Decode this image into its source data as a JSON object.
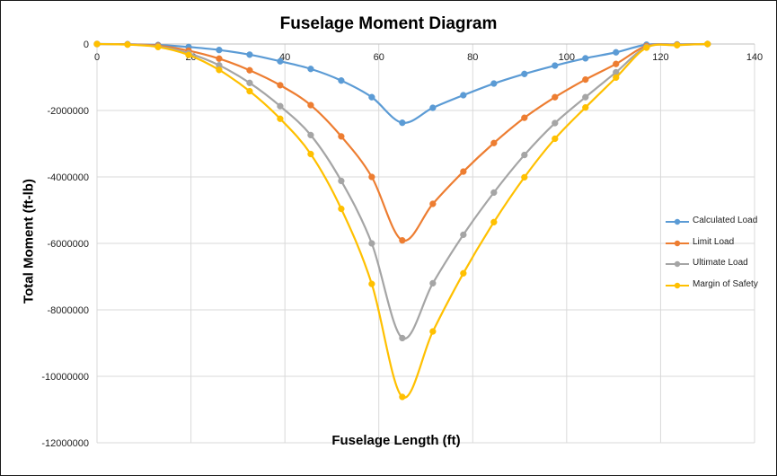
{
  "chart_data": {
    "type": "scatter",
    "title": "Fuselage Moment Diagram",
    "xlabel": "Fuselage Length (ft)",
    "ylabel": "Total Moment (ft-lb)",
    "xlim": [
      0,
      140
    ],
    "ylim": [
      -12000000,
      0
    ],
    "xticks": [
      "0",
      "20",
      "40",
      "60",
      "80",
      "100",
      "120",
      "140"
    ],
    "yticks": [
      "0",
      "-2000000",
      "-4000000",
      "-6000000",
      "-8000000",
      "-10000000",
      "-12000000"
    ],
    "grid": true,
    "legend_position": "right",
    "x": [
      0,
      6.5,
      13,
      19.5,
      26,
      32.5,
      39,
      45.5,
      52,
      58.5,
      65,
      71.5,
      78,
      84.5,
      91,
      97.5,
      104,
      110.5,
      117,
      123.5,
      130
    ],
    "series": [
      {
        "name": "Calculated Load",
        "color": "#5b9bd5",
        "values": [
          0,
          -5000,
          -30000,
          -90000,
          -180000,
          -320000,
          -520000,
          -750000,
          -1100000,
          -1600000,
          -2370000,
          -1920000,
          -1540000,
          -1190000,
          -900000,
          -650000,
          -430000,
          -250000,
          -20000,
          -10000,
          0
        ]
      },
      {
        "name": "Limit Load",
        "color": "#ed7d31",
        "values": [
          0,
          -10000,
          -50000,
          -200000,
          -440000,
          -790000,
          -1240000,
          -1840000,
          -2780000,
          -4000000,
          -5910000,
          -4810000,
          -3840000,
          -2980000,
          -2220000,
          -1600000,
          -1070000,
          -600000,
          -60000,
          -20000,
          0
        ]
      },
      {
        "name": "Ultimate Load",
        "color": "#a5a5a5",
        "values": [
          0,
          -15000,
          -75000,
          -280000,
          -640000,
          -1170000,
          -1870000,
          -2740000,
          -4120000,
          -6000000,
          -8850000,
          -7200000,
          -5740000,
          -4470000,
          -3340000,
          -2380000,
          -1600000,
          -850000,
          -90000,
          -30000,
          0
        ]
      },
      {
        "name": "Margin of Safety",
        "color": "#ffc000",
        "values": [
          0,
          -18000,
          -90000,
          -330000,
          -780000,
          -1420000,
          -2250000,
          -3310000,
          -4960000,
          -7220000,
          -10620000,
          -8650000,
          -6900000,
          -5360000,
          -4010000,
          -2850000,
          -1910000,
          -1010000,
          -110000,
          -35000,
          0
        ]
      }
    ]
  }
}
